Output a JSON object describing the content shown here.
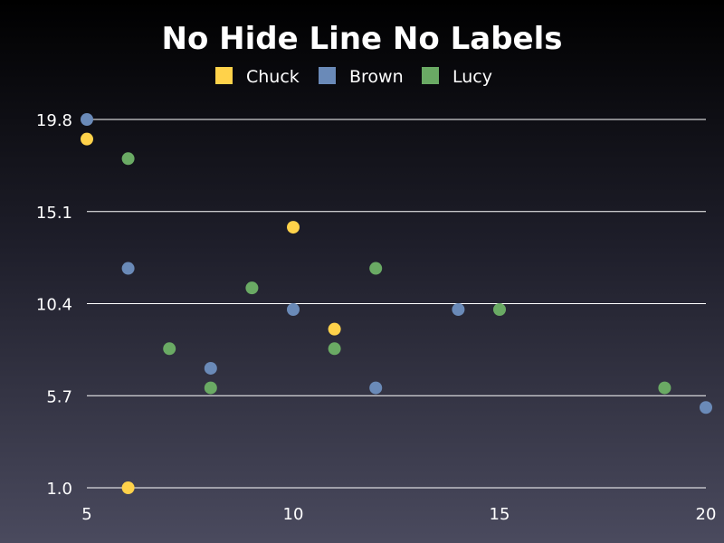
{
  "chart_data": {
    "type": "scatter",
    "title": "No Hide Line No Labels",
    "xlabel": "",
    "ylabel": "",
    "xlim": [
      5,
      20
    ],
    "ylim": [
      1.0,
      19.8
    ],
    "x_ticks": [
      "5",
      "10",
      "15",
      "20"
    ],
    "y_ticks": [
      "19.8",
      "15.1",
      "10.4",
      "5.7",
      "1.0"
    ],
    "grid": "horizontal",
    "legend_position": "top",
    "series": [
      {
        "name": "Chuck",
        "color": "#ffd24a",
        "points": [
          [
            5,
            18.8
          ],
          [
            6,
            1.0
          ],
          [
            10,
            14.3
          ],
          [
            11,
            9.1
          ]
        ]
      },
      {
        "name": "Brown",
        "color": "#6a8ab8",
        "points": [
          [
            5,
            19.8
          ],
          [
            6,
            12.2
          ],
          [
            8,
            7.1
          ],
          [
            10,
            10.1
          ],
          [
            12,
            6.1
          ],
          [
            14,
            10.1
          ],
          [
            20,
            5.1
          ]
        ]
      },
      {
        "name": "Lucy",
        "color": "#6aaa64",
        "points": [
          [
            6,
            17.8
          ],
          [
            7,
            8.1
          ],
          [
            8,
            6.1
          ],
          [
            9,
            11.2
          ],
          [
            11,
            8.1
          ],
          [
            12,
            12.2
          ],
          [
            15,
            10.1
          ],
          [
            19,
            6.1
          ]
        ]
      }
    ]
  }
}
